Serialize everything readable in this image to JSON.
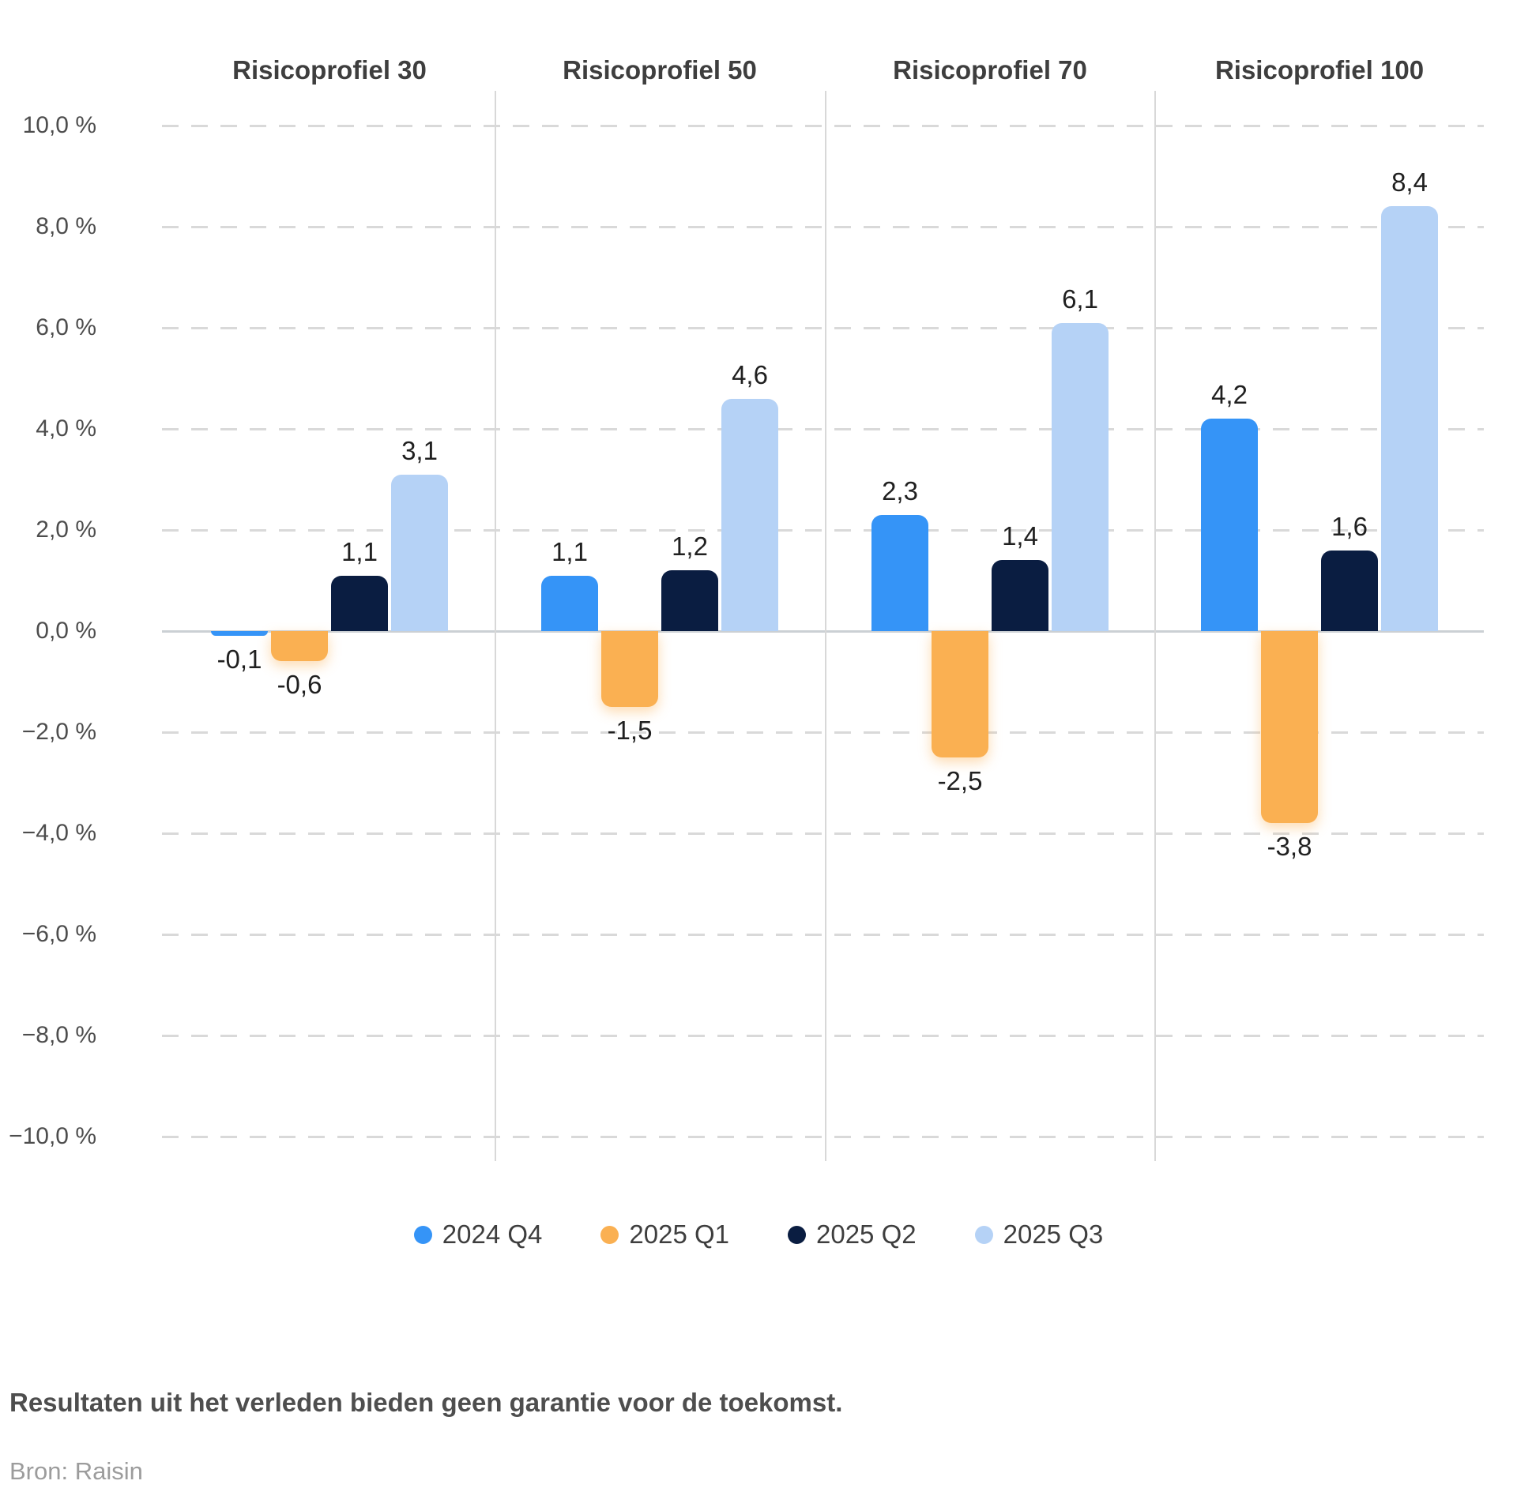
{
  "chart_data": {
    "type": "bar",
    "categories": [
      "Risicoprofiel 30",
      "Risicoprofiel 50",
      "Risicoprofiel 70",
      "Risicoprofiel 100"
    ],
    "series": [
      {
        "name": "2024 Q4",
        "color": "#3594F7",
        "values": [
          -0.1,
          1.1,
          2.3,
          4.2
        ]
      },
      {
        "name": "2025 Q1",
        "color": "#FAB052",
        "values": [
          -0.6,
          -1.5,
          -2.5,
          -3.8
        ]
      },
      {
        "name": "2025 Q2",
        "color": "#0A1D41",
        "values": [
          1.1,
          1.2,
          1.4,
          1.6
        ]
      },
      {
        "name": "2025 Q3",
        "color": "#B5D2F6",
        "values": [
          3.1,
          4.6,
          6.1,
          8.4
        ]
      }
    ],
    "value_labels": [
      [
        "-0,1",
        "1,1",
        "2,3",
        "4,2"
      ],
      [
        "-0,6",
        "-1,5",
        "-2,5",
        "-3,8"
      ],
      [
        "1,1",
        "1,2",
        "1,4",
        "1,6"
      ],
      [
        "3,1",
        "4,6",
        "6,1",
        "8,4"
      ]
    ],
    "y_axis": {
      "min": -10,
      "max": 10,
      "step": 2,
      "ticks": [
        {
          "label": "10,0 %",
          "value": 10
        },
        {
          "label": "8,0 %",
          "value": 8
        },
        {
          "label": "6,0 %",
          "value": 6
        },
        {
          "label": "4,0 %",
          "value": 4
        },
        {
          "label": "2,0 %",
          "value": 2
        },
        {
          "label": "0,0 %",
          "value": 0
        },
        {
          "label": "−2,0 %",
          "value": -2
        },
        {
          "label": "−4,0 %",
          "value": -4
        },
        {
          "label": "−6,0 %",
          "value": -6
        },
        {
          "label": "−8,0 %",
          "value": -8
        },
        {
          "label": "−10,0 %",
          "value": -10
        }
      ]
    },
    "grid": "horizontal-dashed",
    "legend_position": "bottom",
    "title": ""
  },
  "footer": {
    "disclaimer": "Resultaten uit het verleden bieden geen garantie voor de toekomst.",
    "source": "Bron: Raisin"
  }
}
